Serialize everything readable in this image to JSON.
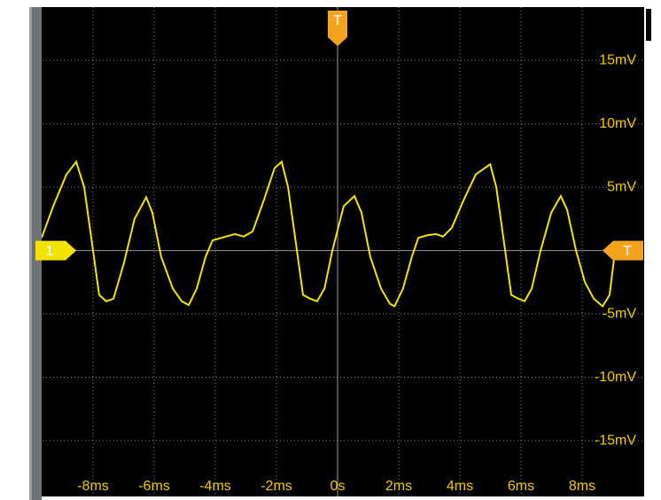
{
  "chart_data": {
    "type": "line",
    "channel_label": "1",
    "trigger_label": "T",
    "channel_offset": 0,
    "trigger_time": 0,
    "trigger_level": 0,
    "color": "#f2e400",
    "label_color": "#f5c800",
    "marker_color": "#f5a31c",
    "grid": true,
    "xlim": [
      -10,
      10
    ],
    "ylim": [
      -19.4,
      19.2
    ],
    "xticks": [
      {
        "value": -8,
        "label": "-8ms"
      },
      {
        "value": -6,
        "label": "-6ms"
      },
      {
        "value": -4,
        "label": "-4ms"
      },
      {
        "value": -2,
        "label": "-2ms"
      },
      {
        "value": 0,
        "label": "0s"
      },
      {
        "value": 2,
        "label": "2ms"
      },
      {
        "value": 4,
        "label": "4ms"
      },
      {
        "value": 6,
        "label": "6ms"
      },
      {
        "value": 8,
        "label": "8ms"
      }
    ],
    "yticks": [
      {
        "value": 15,
        "label": "15mV"
      },
      {
        "value": 10,
        "label": "10mV"
      },
      {
        "value": 5,
        "label": "5mV"
      },
      {
        "value": -5,
        "label": "-5mV"
      },
      {
        "value": -10,
        "label": "-10mV"
      },
      {
        "value": -15,
        "label": "-15mV"
      }
    ],
    "x": [
      -9.68,
      -9.3,
      -8.87,
      -8.55,
      -8.29,
      -8.0,
      -7.8,
      -7.57,
      -7.33,
      -6.99,
      -6.64,
      -6.26,
      -6.06,
      -5.77,
      -5.39,
      -5.1,
      -4.87,
      -4.61,
      -4.32,
      -4.09,
      -3.8,
      -3.36,
      -3.07,
      -2.78,
      -2.41,
      -2.06,
      -1.83,
      -1.62,
      -1.33,
      -1.13,
      -0.9,
      -0.67,
      -0.43,
      -0.17,
      0.2,
      0.55,
      0.78,
      1.07,
      1.42,
      1.71,
      1.86,
      2.14,
      2.43,
      2.64,
      2.93,
      3.22,
      3.45,
      3.74,
      4.09,
      4.52,
      4.99,
      5.19,
      5.48,
      5.68,
      5.91,
      6.12,
      6.35,
      6.64,
      6.99,
      7.3,
      7.51,
      7.8,
      8.09,
      8.38,
      8.67,
      8.9,
      9.1,
      9.25
    ],
    "values": [
      1,
      3.5,
      6,
      7,
      5,
      0,
      -3.5,
      -4,
      -3.8,
      -1,
      2.5,
      4.2,
      3,
      -0.5,
      -3,
      -4,
      -4.3,
      -3,
      -0.5,
      0.8,
      1,
      1.3,
      1.1,
      1.5,
      4,
      6.5,
      7,
      5,
      0,
      -3.5,
      -3.8,
      -4,
      -3,
      0,
      3.5,
      4.3,
      3,
      -0.5,
      -3,
      -4.2,
      -4.4,
      -3,
      -0.5,
      1,
      1.2,
      1.3,
      1.1,
      1.8,
      3.8,
      6,
      6.8,
      5,
      0,
      -3.5,
      -3.8,
      -4,
      -3,
      0,
      3,
      4.3,
      3.2,
      0,
      -2.5,
      -3.8,
      -4.4,
      -3.5,
      0.5,
      0.2
    ]
  }
}
